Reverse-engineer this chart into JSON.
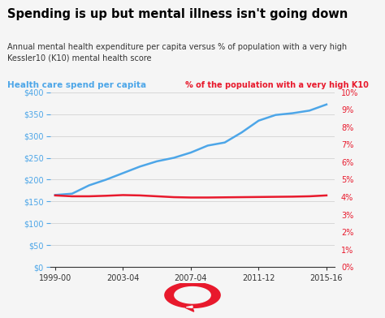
{
  "title": "Spending is up but mental illness isn't going down",
  "subtitle": "Annual mental health expenditure per capita versus % of population with a very high\nKessler10 (K10) mental health score",
  "left_label": "Health care spend per capita",
  "right_label": "% of the population with a very high K10",
  "left_color": "#4da6e8",
  "right_color": "#e8192c",
  "title_color": "#000000",
  "subtitle_color": "#333333",
  "background_color": "#f5f5f5",
  "x_labels": [
    "1999-00",
    "2003-04",
    "2007-04",
    "2011-12",
    "2015-16"
  ],
  "blue_x": [
    0,
    1,
    2,
    3,
    4,
    5,
    6,
    7,
    8,
    9,
    10,
    11,
    12,
    13,
    14,
    15,
    16
  ],
  "blue_y": [
    165,
    168,
    187,
    200,
    215,
    230,
    242,
    250,
    262,
    278,
    285,
    308,
    335,
    348,
    352,
    358,
    372
  ],
  "red_x": [
    0,
    1,
    2,
    3,
    4,
    5,
    6,
    7,
    8,
    9,
    10,
    11,
    12,
    13,
    14,
    15,
    16
  ],
  "red_y": [
    4.1,
    4.05,
    4.05,
    4.08,
    4.12,
    4.1,
    4.05,
    4.0,
    3.98,
    3.98,
    3.99,
    4.0,
    4.01,
    4.02,
    4.03,
    4.05,
    4.1
  ],
  "x_tick_positions": [
    0,
    4,
    8,
    12,
    16
  ],
  "ylim_left": [
    0,
    400
  ],
  "ylim_right": [
    0,
    10
  ],
  "left_yticks": [
    0,
    50,
    100,
    150,
    200,
    250,
    300,
    350,
    400
  ],
  "right_yticks": [
    0,
    1,
    2,
    3,
    4,
    5,
    6,
    7,
    8,
    9,
    10
  ]
}
